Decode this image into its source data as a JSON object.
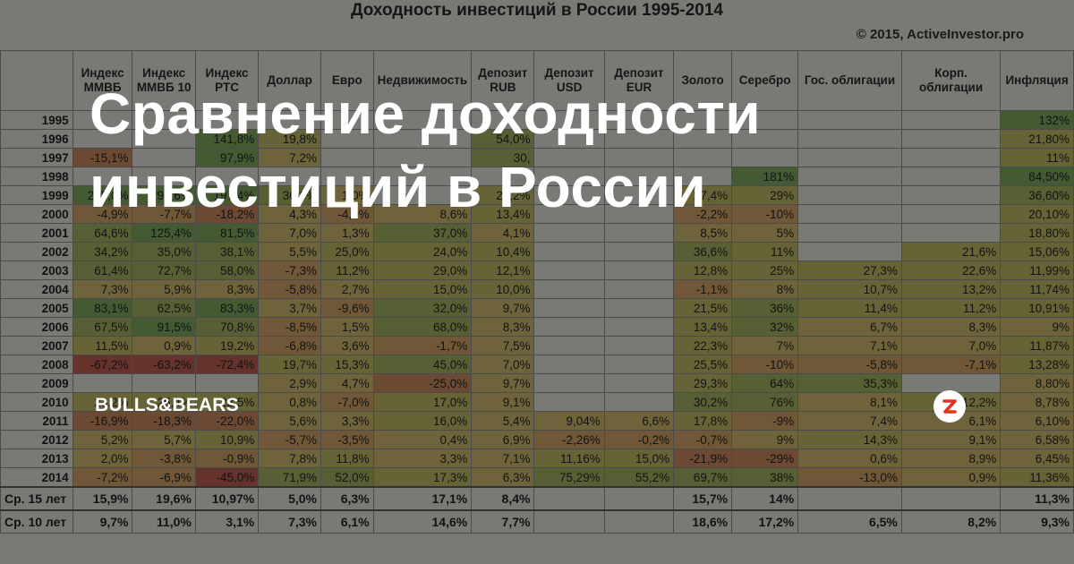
{
  "sheet": {
    "title": "Доходность инвестиций в России 1995-2014",
    "copyright": "© 2015, ActiveInvestor.pro",
    "headers": [
      "",
      "Индекс ММВБ",
      "Индекс ММВБ 10",
      "Индекс РТС",
      "Доллар",
      "Евро",
      "Недвижимость",
      "Депозит RUB",
      "Депозит USD",
      "Депозит EUR",
      "Золото",
      "Серебро",
      "Гос. облигации",
      "Корп. облигации",
      "Инфляция"
    ],
    "rows": [
      [
        "1995",
        "",
        "",
        "",
        "",
        "",
        "",
        "",
        "",
        "",
        "",
        "",
        "",
        "",
        "132%"
      ],
      [
        "1996",
        "",
        "",
        "141,8%",
        "19,8%",
        "",
        "",
        "54,0%",
        "",
        "",
        "",
        "",
        "",
        "",
        "21,80%"
      ],
      [
        "1997",
        "-15,1%",
        "",
        "97,9%",
        "7,2%",
        "",
        "",
        "30,",
        "",
        "",
        "",
        "",
        "",
        "",
        "11%"
      ],
      [
        "1998",
        "",
        "",
        "",
        "",
        "",
        "",
        "",
        "",
        "",
        "",
        "181%",
        "",
        "",
        "84,50%"
      ],
      [
        "1999",
        "235,0%",
        "298,6%",
        "197,4%",
        "30,8%",
        "1,0%",
        "",
        "24,2%",
        "",
        "",
        "27,4%",
        "29%",
        "",
        "",
        "36,60%"
      ],
      [
        "2000",
        "-4,9%",
        "-7,7%",
        "-18,2%",
        "4,3%",
        "-4,0%",
        "8,6%",
        "13,4%",
        "",
        "",
        "-2,2%",
        "-10%",
        "",
        "",
        "20,10%"
      ],
      [
        "2001",
        "64,6%",
        "125,4%",
        "81,5%",
        "7,0%",
        "1,3%",
        "37,0%",
        "4,1%",
        "",
        "",
        "8,5%",
        "5%",
        "",
        "",
        "18,80%"
      ],
      [
        "2002",
        "34,2%",
        "35,0%",
        "38,1%",
        "5,5%",
        "25,0%",
        "24,0%",
        "10,4%",
        "",
        "",
        "36,6%",
        "11%",
        "",
        "21,6%",
        "15,06%"
      ],
      [
        "2003",
        "61,4%",
        "72,7%",
        "58,0%",
        "-7,3%",
        "11,2%",
        "29,0%",
        "12,1%",
        "",
        "",
        "12,8%",
        "25%",
        "27,3%",
        "22,6%",
        "11,99%"
      ],
      [
        "2004",
        "7,3%",
        "5,9%",
        "8,3%",
        "-5,8%",
        "2,7%",
        "15,0%",
        "10,0%",
        "",
        "",
        "-1,1%",
        "8%",
        "10,7%",
        "13,2%",
        "11,74%"
      ],
      [
        "2005",
        "83,1%",
        "62,5%",
        "83,3%",
        "3,7%",
        "-9,6%",
        "32,0%",
        "9,7%",
        "",
        "",
        "21,5%",
        "36%",
        "11,4%",
        "11,2%",
        "10,91%"
      ],
      [
        "2006",
        "67,5%",
        "91,5%",
        "70,8%",
        "-8,5%",
        "1,5%",
        "68,0%",
        "8,3%",
        "",
        "",
        "13,4%",
        "32%",
        "6,7%",
        "8,3%",
        "9%"
      ],
      [
        "2007",
        "11,5%",
        "0,9%",
        "19,2%",
        "-6,8%",
        "3,6%",
        "-1,7%",
        "7,5%",
        "",
        "",
        "22,3%",
        "7%",
        "7,1%",
        "7,0%",
        "11,87%"
      ],
      [
        "2008",
        "-67,2%",
        "-63,2%",
        "-72,4%",
        "19,7%",
        "15,3%",
        "45,0%",
        "7,0%",
        "",
        "",
        "25,5%",
        "-10%",
        "-5,8%",
        "-7,1%",
        "13,28%"
      ],
      [
        "2009",
        "",
        "",
        "",
        "2,9%",
        "4,7%",
        "-25,0%",
        "9,7%",
        "",
        "",
        "29,3%",
        "64%",
        "35,3%",
        "",
        "8,80%"
      ],
      [
        "2010",
        "23,2%",
        "25,4%",
        "22,5%",
        "0,8%",
        "-7,0%",
        "17,0%",
        "9,1%",
        "",
        "",
        "30,2%",
        "76%",
        "8,1%",
        "12,2%",
        "8,78%"
      ],
      [
        "2011",
        "-16,9%",
        "-18,3%",
        "-22,0%",
        "5,6%",
        "3,3%",
        "16,0%",
        "5,4%",
        "9,04%",
        "6,6%",
        "17,8%",
        "-9%",
        "7,4%",
        "6,1%",
        "6,10%"
      ],
      [
        "2012",
        "5,2%",
        "5,7%",
        "10,9%",
        "-5,7%",
        "-3,5%",
        "0,4%",
        "6,9%",
        "-2,26%",
        "-0,2%",
        "-0,7%",
        "9%",
        "14,3%",
        "9,1%",
        "6,58%"
      ],
      [
        "2013",
        "2,0%",
        "-3,8%",
        "-0,9%",
        "7,8%",
        "11,8%",
        "3,3%",
        "7,1%",
        "11,16%",
        "15,0%",
        "-21,9%",
        "-29%",
        "0,6%",
        "8,9%",
        "6,45%"
      ],
      [
        "2014",
        "-7,2%",
        "-6,9%",
        "-45,0%",
        "71,9%",
        "52,0%",
        "17,3%",
        "6,3%",
        "75,29%",
        "55,2%",
        "69,7%",
        "38%",
        "-13,0%",
        "0,9%",
        "11,36%"
      ]
    ],
    "averages": [
      [
        "Ср. 15 лет",
        "15,9%",
        "19,6%",
        "10,97%",
        "5,0%",
        "6,3%",
        "17,1%",
        "8,4%",
        "",
        "",
        "15,7%",
        "14%",
        "",
        "",
        "11,3%"
      ],
      [
        "Ср. 10 лет",
        "9,7%",
        "11,0%",
        "3,1%",
        "7,3%",
        "6,1%",
        "14,6%",
        "7,7%",
        "",
        "",
        "18,6%",
        "17,2%",
        "6,5%",
        "8,2%",
        "9,3%"
      ]
    ]
  },
  "overlay": {
    "headline_line1": "Сравнение доходности",
    "headline_line2": "инвестиций в России",
    "brand": "BULLS&BEARS",
    "logo_icon": "zen-logo-icon"
  }
}
